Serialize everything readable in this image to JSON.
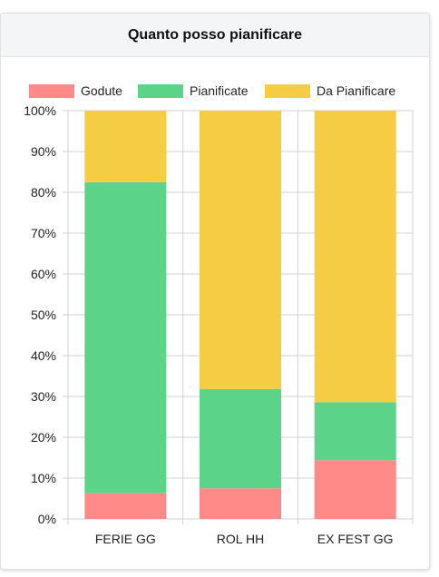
{
  "card": {
    "title": "Quanto posso pianificare"
  },
  "colors": {
    "godute": "#ff8a87",
    "pianificate": "#5bd48a",
    "da_pianificare": "#f4cd44",
    "grid": "#d3d3d3",
    "axis_text": "#222222"
  },
  "chart_data": {
    "type": "bar",
    "stacked": true,
    "categories": [
      "FERIE GG",
      "ROL HH",
      "EX FEST GG"
    ],
    "series": [
      {
        "name": "Godute",
        "values": [
          6.3,
          7.5,
          14.4
        ]
      },
      {
        "name": "Pianificate",
        "values": [
          76.2,
          24.3,
          14.2
        ]
      },
      {
        "name": "Da Pianificare",
        "values": [
          17.5,
          68.2,
          71.4
        ]
      }
    ],
    "y_ticks": [
      "0%",
      "10%",
      "20%",
      "30%",
      "40%",
      "50%",
      "60%",
      "70%",
      "80%",
      "90%",
      "100%"
    ],
    "ylim": [
      0,
      100
    ],
    "grid": true,
    "legend_position": "top"
  }
}
